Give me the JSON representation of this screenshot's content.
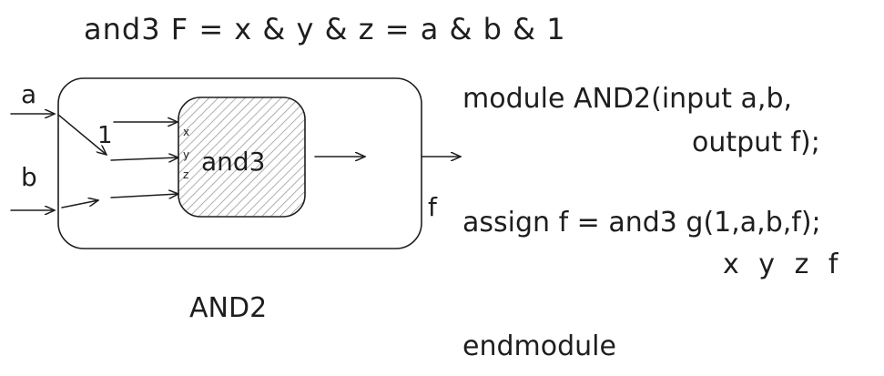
{
  "title_equation": "and3 F = x & y & z = a & b & 1",
  "diagram": {
    "outer_module_label": "AND2",
    "inner_gate_label": "and3",
    "inputs": {
      "a": "a",
      "b": "b"
    },
    "constant_input": "1",
    "inner_ports": {
      "x": "x",
      "y": "y",
      "z": "z"
    },
    "output": "f",
    "stroke_color": "#1e1e1e",
    "inner_fill_hatch_color": "#9a9a9a"
  },
  "code": {
    "line1": "module AND2(input a,b,",
    "line2": "output f);",
    "line3": "assign f = and3 g(1,a,b,f);",
    "line4": "x y z f",
    "line5": "endmodule"
  }
}
